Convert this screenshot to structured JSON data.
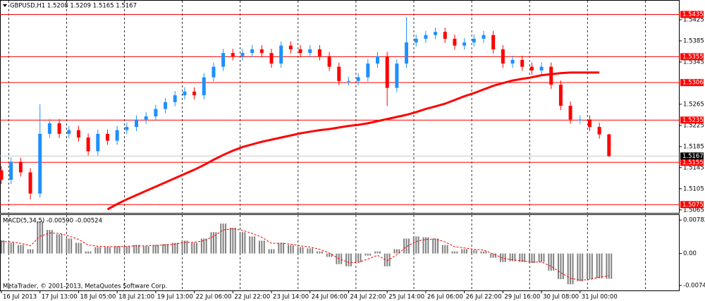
{
  "chart_data": [
    {
      "type": "candlestick",
      "title": "GBPUSD,H1  1.5208 1.5209 1.5165 1.5167",
      "x": [
        0,
        4,
        8,
        12,
        16,
        20,
        24,
        28,
        32,
        36,
        40,
        44,
        48,
        52,
        56,
        60,
        64,
        68,
        72,
        76,
        80,
        84,
        88,
        92,
        96,
        100,
        104,
        108,
        112,
        116,
        120,
        124,
        128,
        132,
        136,
        140,
        144,
        148,
        152,
        156,
        160,
        164,
        168,
        172,
        176,
        180,
        184,
        188,
        192,
        196,
        200,
        204,
        208,
        212,
        216,
        220,
        224,
        228,
        232,
        236,
        240,
        244,
        248,
        252
      ],
      "open": [
        1.514,
        1.5122,
        1.5156,
        1.5136,
        1.5096,
        1.5209,
        1.5229,
        1.5209,
        1.5216,
        1.5202,
        1.5176,
        1.5209,
        1.5196,
        1.5216,
        1.5222,
        1.5236,
        1.5242,
        1.5256,
        1.5269,
        1.5282,
        1.5289,
        1.5282,
        1.5316,
        1.5336,
        1.5362,
        1.5356,
        1.5362,
        1.5369,
        1.5362,
        1.5342,
        1.5376,
        1.5369,
        1.5362,
        1.5369,
        1.5356,
        1.5336,
        1.5309,
        1.5309,
        1.5316,
        1.5342,
        1.5356,
        1.5296,
        1.5342,
        1.5382,
        1.5389,
        1.5396,
        1.5402,
        1.5389,
        1.5376,
        1.5382,
        1.5389,
        1.5396,
        1.5369,
        1.5342,
        1.5349,
        1.5336,
        1.5329,
        1.5336,
        1.5302,
        1.5262,
        1.5236,
        1.5236,
        1.5222,
        1.5208
      ],
      "high": [
        1.5148,
        1.5164,
        1.5164,
        1.5144,
        1.5265,
        1.5237,
        1.5237,
        1.5224,
        1.5224,
        1.521,
        1.5217,
        1.5217,
        1.5224,
        1.523,
        1.5244,
        1.525,
        1.5264,
        1.5277,
        1.529,
        1.5297,
        1.5297,
        1.5324,
        1.5344,
        1.537,
        1.537,
        1.537,
        1.5377,
        1.5377,
        1.537,
        1.5384,
        1.5384,
        1.5377,
        1.5377,
        1.5377,
        1.5364,
        1.5344,
        1.5317,
        1.5324,
        1.535,
        1.5364,
        1.5364,
        1.535,
        1.543,
        1.5397,
        1.5404,
        1.541,
        1.541,
        1.5397,
        1.539,
        1.5397,
        1.5404,
        1.5404,
        1.5377,
        1.5357,
        1.5357,
        1.5344,
        1.5344,
        1.5344,
        1.531,
        1.527,
        1.5244,
        1.5244,
        1.523,
        1.5209
      ],
      "low": [
        1.5114,
        1.5114,
        1.5128,
        1.5085,
        1.5088,
        1.5201,
        1.5201,
        1.5201,
        1.5194,
        1.5168,
        1.5168,
        1.5188,
        1.5188,
        1.5208,
        1.5214,
        1.5228,
        1.5234,
        1.5248,
        1.5261,
        1.5274,
        1.5274,
        1.5274,
        1.5308,
        1.5328,
        1.5348,
        1.5348,
        1.5354,
        1.5354,
        1.5334,
        1.5334,
        1.5361,
        1.5354,
        1.5354,
        1.5348,
        1.5328,
        1.5301,
        1.5301,
        1.5301,
        1.5308,
        1.5334,
        1.5262,
        1.5288,
        1.5334,
        1.5374,
        1.5381,
        1.5388,
        1.5381,
        1.5368,
        1.5368,
        1.5374,
        1.5381,
        1.5361,
        1.5334,
        1.5334,
        1.5328,
        1.5321,
        1.5321,
        1.5294,
        1.5254,
        1.5228,
        1.5228,
        1.5214,
        1.52,
        1.5165
      ],
      "close": [
        1.5122,
        1.5156,
        1.5136,
        1.5096,
        1.5209,
        1.5229,
        1.5209,
        1.5216,
        1.5202,
        1.5176,
        1.5209,
        1.5196,
        1.5216,
        1.5222,
        1.5236,
        1.5242,
        1.5256,
        1.5269,
        1.5282,
        1.5289,
        1.5282,
        1.5316,
        1.5336,
        1.5362,
        1.5356,
        1.5362,
        1.5369,
        1.5362,
        1.5342,
        1.5376,
        1.5369,
        1.5362,
        1.5369,
        1.5356,
        1.5336,
        1.5309,
        1.5309,
        1.5316,
        1.5342,
        1.5356,
        1.5296,
        1.5342,
        1.5382,
        1.5389,
        1.5396,
        1.5402,
        1.5389,
        1.5376,
        1.5382,
        1.5389,
        1.5396,
        1.5369,
        1.5342,
        1.5349,
        1.5336,
        1.5329,
        1.5336,
        1.5302,
        1.5262,
        1.5236,
        1.5236,
        1.5222,
        1.5208,
        1.5167
      ],
      "up_color": "#1e90ff",
      "down_color": "#ff0000",
      "moving_average": [
        null,
        null,
        null,
        null,
        null,
        null,
        null,
        null,
        null,
        null,
        null,
        1.5066,
        1.5076,
        1.5085,
        1.5093,
        1.5101,
        1.5109,
        1.5117,
        1.5125,
        1.5133,
        1.5141,
        1.515,
        1.516,
        1.5169,
        1.5177,
        1.5184,
        1.5189,
        1.5194,
        1.5198,
        1.5202,
        1.5206,
        1.521,
        1.5213,
        1.5216,
        1.5218,
        1.5221,
        1.5224,
        1.5226,
        1.5229,
        1.5233,
        1.5237,
        1.5241,
        1.5245,
        1.525,
        1.5256,
        1.5261,
        1.5266,
        1.5273,
        1.528,
        1.5286,
        1.5293,
        1.53,
        1.5305,
        1.531,
        1.5313,
        1.5316,
        1.532,
        1.5322,
        1.5324,
        1.5325,
        1.5325,
        1.5325,
        1.5325,
        null
      ],
      "moving_average_color": "#ff0000",
      "levels": [
        1.5435,
        1.5355,
        1.5306,
        1.5235,
        1.5155,
        1.5075
      ],
      "level_color": "#ff0000",
      "current_price": 1.5167,
      "xlim": [
        0,
        281
      ],
      "ylim": [
        1.5062,
        1.5457
      ],
      "yticks": [
        1.5425,
        1.5385,
        1.5345,
        1.5265,
        1.5225,
        1.5185,
        1.5145,
        1.5105,
        1.5065
      ],
      "xticks": [
        {
          "value": 0,
          "label": "16 Jul 2013"
        },
        {
          "value": 16,
          "label": "17 Jul 13:00"
        },
        {
          "value": 32,
          "label": "18 Jul 05:00"
        },
        {
          "value": 48,
          "label": "18 Jul 21:00"
        },
        {
          "value": 64,
          "label": "19 Jul 13:00"
        },
        {
          "value": 80,
          "label": "22 Jul 06:00"
        },
        {
          "value": 96,
          "label": "22 Jul 22:00"
        },
        {
          "value": 112,
          "label": "23 Jul 14:00"
        },
        {
          "value": 128,
          "label": "24 Jul 06:00"
        },
        {
          "value": 144,
          "label": "24 Jul 22:00"
        },
        {
          "value": 160,
          "label": "25 Jul 14:00"
        },
        {
          "value": 176,
          "label": "26 Jul 06:00"
        },
        {
          "value": 192,
          "label": "26 Jul 22:00"
        },
        {
          "value": 208,
          "label": "29 Jul 16:00"
        },
        {
          "value": 224,
          "label": "30 Jul 08:00"
        },
        {
          "value": 240,
          "label": "31 Jul 00:00"
        }
      ],
      "grid": true
    },
    {
      "type": "macd",
      "title": "MACD(5,34,5) -0.00590 -0.00524",
      "x": [
        0,
        4,
        8,
        12,
        16,
        20,
        24,
        28,
        32,
        36,
        40,
        44,
        48,
        52,
        56,
        60,
        64,
        68,
        72,
        76,
        80,
        84,
        88,
        92,
        96,
        100,
        104,
        108,
        112,
        116,
        120,
        124,
        128,
        132,
        136,
        140,
        144,
        148,
        152,
        156,
        160,
        164,
        168,
        172,
        176,
        180,
        184,
        188,
        192,
        196,
        200,
        204,
        208,
        212,
        216,
        220,
        224,
        228,
        232,
        236,
        240,
        244,
        248,
        252
      ],
      "histogram": [
        0.0031,
        0.0025,
        0.002,
        0.001,
        0.0075,
        0.0055,
        0.0045,
        0.0035,
        0.0025,
        0.0005,
        0.0015,
        0.0015,
        0.0017,
        0.0017,
        0.002,
        0.0017,
        0.002,
        0.0022,
        0.0025,
        0.003,
        0.0025,
        0.0035,
        0.005,
        0.007,
        0.006,
        0.005,
        0.004,
        0.003,
        0.001,
        0.0025,
        0.002,
        0.0015,
        0.0012,
        0.0005,
        -0.0008,
        -0.0025,
        -0.003,
        -0.002,
        -0.0005,
        0.0005,
        -0.003,
        0.001,
        0.0035,
        0.004,
        0.0038,
        0.0035,
        0.002,
        0.0005,
        0.001,
        0.0008,
        0.0005,
        -0.001,
        -0.002,
        -0.0018,
        -0.002,
        -0.0022,
        -0.002,
        -0.004,
        -0.006,
        -0.0072,
        -0.0065,
        -0.006,
        -0.0058,
        -0.0059
      ],
      "histogram_color": "#808080",
      "signal": [
        0.0028,
        0.0027,
        0.0024,
        0.0018,
        0.004,
        0.0048,
        0.0047,
        0.0041,
        0.0033,
        0.002,
        0.0017,
        0.0016,
        0.0016,
        0.0017,
        0.0018,
        0.0018,
        0.0019,
        0.002,
        0.0022,
        0.0026,
        0.0026,
        0.003,
        0.004,
        0.0055,
        0.0058,
        0.0054,
        0.0047,
        0.0038,
        0.0024,
        0.0024,
        0.0022,
        0.0018,
        0.0015,
        0.001,
        0.0001,
        -0.0012,
        -0.0021,
        -0.0021,
        -0.0013,
        -0.0004,
        -0.0017,
        -0.0003,
        0.0016,
        0.0028,
        0.0033,
        0.0034,
        0.0027,
        0.0016,
        0.0013,
        0.001,
        0.0008,
        -0.0001,
        -0.0011,
        -0.0015,
        -0.0017,
        -0.002,
        -0.002,
        -0.003,
        -0.0045,
        -0.0058,
        -0.0062,
        -0.0061,
        -0.0055,
        -0.00524
      ],
      "signal_color": "#ff0000",
      "xlim": [
        0,
        281
      ],
      "ylim": [
        -0.0083,
        0.009
      ],
      "yticks": [
        0.00782,
        {
          "value": 0,
          "label": "0.00"
        },
        -0.00745
      ]
    }
  ],
  "copyright": "MetaTrader, © 2001-2013, MetaQuotes Software Corp."
}
